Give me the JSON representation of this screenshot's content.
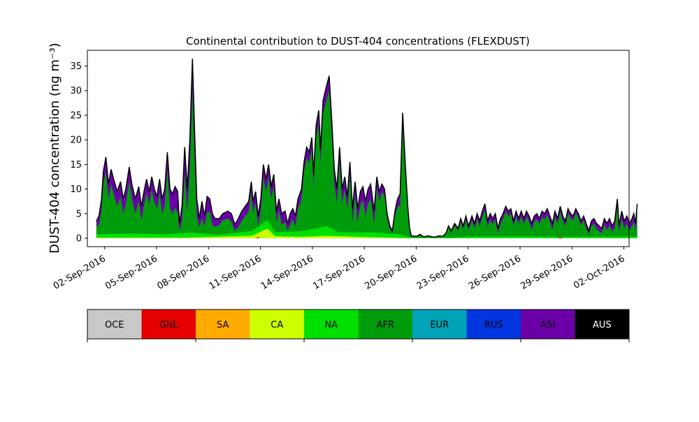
{
  "chart_data": {
    "type": "area",
    "title": "Continental contribution to DUST-404 concentrations (FLEXDUST)",
    "ylabel": "DUST-404 concentration (ng m⁻³)",
    "xlabel": "",
    "ylim": [
      -1.7,
      38.2
    ],
    "xlim_days": [
      0,
      31.3
    ],
    "x_tick_labels": [
      "02-Sep-2016",
      "05-Sep-2016",
      "08-Sep-2016",
      "11-Sep-2016",
      "14-Sep-2016",
      "17-Sep-2016",
      "20-Sep-2016",
      "23-Sep-2016",
      "26-Sep-2016",
      "29-Sep-2016",
      "02-Oct-2016"
    ],
    "y_ticks": [
      0,
      5,
      10,
      15,
      20,
      25,
      30,
      35
    ],
    "grid": false,
    "legend_placement": "colorbar below plot",
    "total_series_color": "#000000",
    "series_keys": [
      {
        "name": "OCE",
        "color": "#c8c8c8"
      },
      {
        "name": "GNL",
        "color": "#e60000"
      },
      {
        "name": "SA",
        "color": "#ffaa00"
      },
      {
        "name": "CA",
        "color": "#ccff00"
      },
      {
        "name": "NA",
        "color": "#00e000"
      },
      {
        "name": "AFR",
        "color": "#009c0c"
      },
      {
        "name": "EUR",
        "color": "#00a3b8"
      },
      {
        "name": "RUS",
        "color": "#0035e0"
      },
      {
        "name": "ASI",
        "color": "#6b00a8"
      },
      {
        "name": "AUS",
        "color": "#000000"
      }
    ],
    "total_profile": [
      [
        0.0,
        3.5
      ],
      [
        0.15,
        4.5
      ],
      [
        0.3,
        8.0
      ],
      [
        0.4,
        13.5
      ],
      [
        0.55,
        16.5
      ],
      [
        0.7,
        11.0
      ],
      [
        0.85,
        14.0
      ],
      [
        1.0,
        12.0
      ],
      [
        1.2,
        9.5
      ],
      [
        1.4,
        11.5
      ],
      [
        1.55,
        8.0
      ],
      [
        1.7,
        10.0
      ],
      [
        1.9,
        14.5
      ],
      [
        2.05,
        11.0
      ],
      [
        2.25,
        8.0
      ],
      [
        2.45,
        10.5
      ],
      [
        2.6,
        6.5
      ],
      [
        2.75,
        9.5
      ],
      [
        2.9,
        12.0
      ],
      [
        3.05,
        9.5
      ],
      [
        3.2,
        12.5
      ],
      [
        3.35,
        10.0
      ],
      [
        3.5,
        8.5
      ],
      [
        3.65,
        12.0
      ],
      [
        3.8,
        8.0
      ],
      [
        3.95,
        10.0
      ],
      [
        4.1,
        17.5
      ],
      [
        4.25,
        10.0
      ],
      [
        4.4,
        9.0
      ],
      [
        4.55,
        10.5
      ],
      [
        4.7,
        9.5
      ],
      [
        4.8,
        3.0
      ],
      [
        4.95,
        6.5
      ],
      [
        5.1,
        18.5
      ],
      [
        5.25,
        10.0
      ],
      [
        5.4,
        20.0
      ],
      [
        5.55,
        36.5
      ],
      [
        5.7,
        19.0
      ],
      [
        5.8,
        8.0
      ],
      [
        5.95,
        4.0
      ],
      [
        6.1,
        7.5
      ],
      [
        6.25,
        4.5
      ],
      [
        6.4,
        8.5
      ],
      [
        6.55,
        8.0
      ],
      [
        6.7,
        5.0
      ],
      [
        6.85,
        4.0
      ],
      [
        7.1,
        4.0
      ],
      [
        7.3,
        5.0
      ],
      [
        7.6,
        5.5
      ],
      [
        7.8,
        5.0
      ],
      [
        8.0,
        2.8
      ],
      [
        8.2,
        4.0
      ],
      [
        8.4,
        5.5
      ],
      [
        8.6,
        6.5
      ],
      [
        8.8,
        7.5
      ],
      [
        8.95,
        11.5
      ],
      [
        9.05,
        7.5
      ],
      [
        9.2,
        9.5
      ],
      [
        9.35,
        4.5
      ],
      [
        9.5,
        8.0
      ],
      [
        9.65,
        15.0
      ],
      [
        9.8,
        12.0
      ],
      [
        9.95,
        15.0
      ],
      [
        10.1,
        10.5
      ],
      [
        10.25,
        13.0
      ],
      [
        10.4,
        5.5
      ],
      [
        10.55,
        8.0
      ],
      [
        10.7,
        5.0
      ],
      [
        10.9,
        5.5
      ],
      [
        11.05,
        3.0
      ],
      [
        11.2,
        5.0
      ],
      [
        11.35,
        6.0
      ],
      [
        11.5,
        4.5
      ],
      [
        11.65,
        8.0
      ],
      [
        11.85,
        10.0
      ],
      [
        12.0,
        15.5
      ],
      [
        12.15,
        18.5
      ],
      [
        12.3,
        17.5
      ],
      [
        12.45,
        20.5
      ],
      [
        12.55,
        13.0
      ],
      [
        12.7,
        23.0
      ],
      [
        12.85,
        26.0
      ],
      [
        12.95,
        18.0
      ],
      [
        13.1,
        28.0
      ],
      [
        13.3,
        31.0
      ],
      [
        13.45,
        33.0
      ],
      [
        13.6,
        24.0
      ],
      [
        13.75,
        14.0
      ],
      [
        13.9,
        10.0
      ],
      [
        14.05,
        18.5
      ],
      [
        14.2,
        10.0
      ],
      [
        14.35,
        12.5
      ],
      [
        14.5,
        8.5
      ],
      [
        14.65,
        15.5
      ],
      [
        14.8,
        6.0
      ],
      [
        14.95,
        11.5
      ],
      [
        15.1,
        6.0
      ],
      [
        15.25,
        9.5
      ],
      [
        15.4,
        10.5
      ],
      [
        15.55,
        7.5
      ],
      [
        15.7,
        10.0
      ],
      [
        15.85,
        11.0
      ],
      [
        16.05,
        5.5
      ],
      [
        16.2,
        12.5
      ],
      [
        16.35,
        9.5
      ],
      [
        16.5,
        11.0
      ],
      [
        16.65,
        10.0
      ],
      [
        16.8,
        5.0
      ],
      [
        16.95,
        2.5
      ],
      [
        17.1,
        1.5
      ],
      [
        17.25,
        5.5
      ],
      [
        17.4,
        8.0
      ],
      [
        17.55,
        9.0
      ],
      [
        17.7,
        25.5
      ],
      [
        17.85,
        15.0
      ],
      [
        18.0,
        6.0
      ],
      [
        18.1,
        2.0
      ],
      [
        18.2,
        0.5
      ],
      [
        18.5,
        0.4
      ],
      [
        18.7,
        0.8
      ],
      [
        18.9,
        0.3
      ],
      [
        19.2,
        0.5
      ],
      [
        19.5,
        0.2
      ],
      [
        19.8,
        0.5
      ],
      [
        20.0,
        0.4
      ],
      [
        20.2,
        1.0
      ],
      [
        20.35,
        2.5
      ],
      [
        20.5,
        1.5
      ],
      [
        20.7,
        3.0
      ],
      [
        20.9,
        2.0
      ],
      [
        21.05,
        4.0
      ],
      [
        21.2,
        2.5
      ],
      [
        21.35,
        4.5
      ],
      [
        21.5,
        2.5
      ],
      [
        21.7,
        4.5
      ],
      [
        21.85,
        3.0
      ],
      [
        22.0,
        5.0
      ],
      [
        22.15,
        3.5
      ],
      [
        22.3,
        5.5
      ],
      [
        22.45,
        7.0
      ],
      [
        22.6,
        3.5
      ],
      [
        22.75,
        5.0
      ],
      [
        22.9,
        4.0
      ],
      [
        23.05,
        5.0
      ],
      [
        23.2,
        2.0
      ],
      [
        23.35,
        4.0
      ],
      [
        23.5,
        5.0
      ],
      [
        23.65,
        6.5
      ],
      [
        23.8,
        5.5
      ],
      [
        23.95,
        6.0
      ],
      [
        24.1,
        3.5
      ],
      [
        24.25,
        5.5
      ],
      [
        24.4,
        4.0
      ],
      [
        24.55,
        5.5
      ],
      [
        24.7,
        4.0
      ],
      [
        24.85,
        5.5
      ],
      [
        25.0,
        4.5
      ],
      [
        25.15,
        3.0
      ],
      [
        25.3,
        4.5
      ],
      [
        25.45,
        5.0
      ],
      [
        25.6,
        4.0
      ],
      [
        25.75,
        5.5
      ],
      [
        25.9,
        5.0
      ],
      [
        26.05,
        6.0
      ],
      [
        26.2,
        4.5
      ],
      [
        26.35,
        3.0
      ],
      [
        26.5,
        5.5
      ],
      [
        26.65,
        4.0
      ],
      [
        26.8,
        6.5
      ],
      [
        26.95,
        4.5
      ],
      [
        27.1,
        3.5
      ],
      [
        27.25,
        6.0
      ],
      [
        27.4,
        5.0
      ],
      [
        27.55,
        4.5
      ],
      [
        27.7,
        6.0
      ],
      [
        27.85,
        5.0
      ],
      [
        28.0,
        3.5
      ],
      [
        28.15,
        4.5
      ],
      [
        28.3,
        3.0
      ],
      [
        28.45,
        1.5
      ],
      [
        28.6,
        3.5
      ],
      [
        28.75,
        4.0
      ],
      [
        28.9,
        3.0
      ],
      [
        29.05,
        2.5
      ],
      [
        29.2,
        2.0
      ],
      [
        29.35,
        4.0
      ],
      [
        29.5,
        3.0
      ],
      [
        29.65,
        4.0
      ],
      [
        29.8,
        2.5
      ],
      [
        29.95,
        3.5
      ],
      [
        30.1,
        8.0
      ],
      [
        30.2,
        2.5
      ],
      [
        30.35,
        5.5
      ],
      [
        30.5,
        3.5
      ],
      [
        30.65,
        4.5
      ],
      [
        30.8,
        3.0
      ],
      [
        30.95,
        4.0
      ],
      [
        31.05,
        5.0
      ],
      [
        31.15,
        3.0
      ],
      [
        31.25,
        7.0
      ]
    ],
    "series": [
      {
        "name": "NA",
        "color": "#00e000",
        "values": [
          [
            0.0,
            0.8
          ],
          [
            2.0,
            1.0
          ],
          [
            4.0,
            0.8
          ],
          [
            5.5,
            1.2
          ],
          [
            7.0,
            0.7
          ],
          [
            9.0,
            1.5
          ],
          [
            9.9,
            3.8
          ],
          [
            10.3,
            1.2
          ],
          [
            12.0,
            1.5
          ],
          [
            13.3,
            2.5
          ],
          [
            14.0,
            1.2
          ],
          [
            16.0,
            1.2
          ],
          [
            17.5,
            0.8
          ],
          [
            18.2,
            0.1
          ],
          [
            20.0,
            0.1
          ],
          [
            22.0,
            0.4
          ],
          [
            25.0,
            0.4
          ],
          [
            28.0,
            0.3
          ],
          [
            31.25,
            0.4
          ]
        ]
      },
      {
        "name": "CA",
        "color": "#ccff00",
        "values": [
          [
            0.0,
            0.1
          ],
          [
            5.0,
            0.1
          ],
          [
            9.0,
            0.5
          ],
          [
            9.9,
            2.0
          ],
          [
            10.3,
            0.4
          ],
          [
            12.0,
            0.3
          ],
          [
            13.3,
            0.5
          ],
          [
            16.0,
            0.2
          ],
          [
            18.2,
            0.0
          ],
          [
            31.25,
            0.0
          ]
        ]
      },
      {
        "name": "ASI",
        "color": "#6b00a8",
        "values": [
          [
            0.0,
            1.2
          ],
          [
            0.55,
            3.0
          ],
          [
            2.0,
            3.0
          ],
          [
            3.5,
            2.5
          ],
          [
            5.55,
            6.0
          ],
          [
            7.0,
            1.2
          ],
          [
            9.65,
            2.5
          ],
          [
            12.0,
            2.0
          ],
          [
            13.45,
            3.0
          ],
          [
            14.65,
            2.5
          ],
          [
            15.85,
            3.0
          ],
          [
            17.1,
            0.3
          ],
          [
            17.7,
            3.0
          ],
          [
            18.2,
            0.1
          ],
          [
            20.0,
            0.1
          ],
          [
            22.45,
            1.2
          ],
          [
            24.0,
            1.0
          ],
          [
            26.0,
            1.2
          ],
          [
            28.0,
            0.8
          ],
          [
            30.1,
            1.5
          ],
          [
            31.25,
            1.5
          ]
        ]
      },
      {
        "name": "GNL",
        "color": "#e60000",
        "values": [
          [
            0.0,
            0.0
          ],
          [
            9.2,
            0.0
          ],
          [
            9.3,
            0.4
          ],
          [
            9.4,
            0.0
          ],
          [
            26.7,
            0.0
          ],
          [
            26.8,
            0.3
          ],
          [
            26.9,
            0.0
          ],
          [
            31.25,
            0.0
          ]
        ]
      }
    ]
  }
}
